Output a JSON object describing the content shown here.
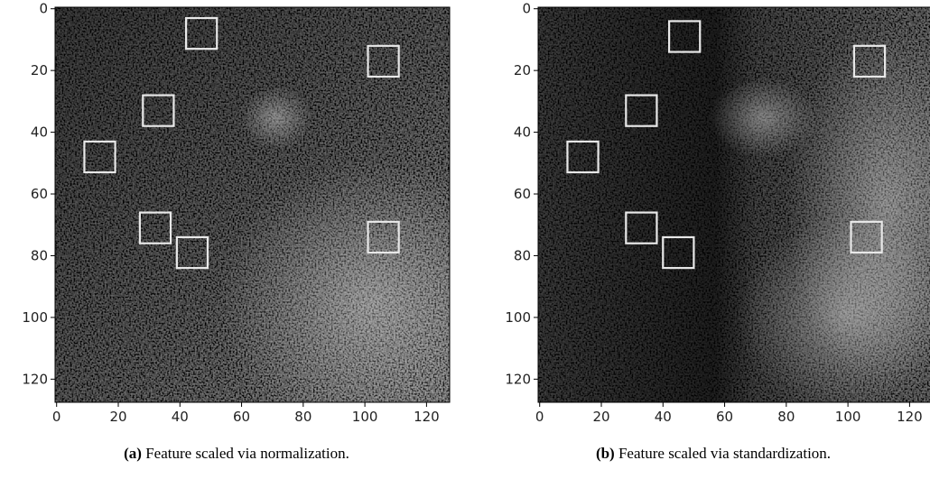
{
  "figure": {
    "panels": [
      {
        "caption_label": "(a)",
        "caption": "Feature scaled via normalization.",
        "xlim": [
          -0.5,
          127.5
        ],
        "ylim": [
          127.5,
          -0.5
        ],
        "xticks": [
          0,
          20,
          40,
          60,
          80,
          100,
          120
        ],
        "yticks": [
          0,
          20,
          40,
          60,
          80,
          100,
          120
        ],
        "boxes": [
          {
            "x": 47,
            "y": 8,
            "size": 10
          },
          {
            "x": 106,
            "y": 17,
            "size": 10
          },
          {
            "x": 33,
            "y": 33,
            "size": 10
          },
          {
            "x": 14,
            "y": 48,
            "size": 10
          },
          {
            "x": 32,
            "y": 71,
            "size": 10
          },
          {
            "x": 44,
            "y": 79,
            "size": 10
          },
          {
            "x": 106,
            "y": 74,
            "size": 10
          }
        ]
      },
      {
        "caption_label": "(b)",
        "caption": "Feature scaled via standardization.",
        "xlim": [
          -0.5,
          127.5
        ],
        "ylim": [
          127.5,
          -0.5
        ],
        "xticks": [
          0,
          20,
          40,
          60,
          80,
          100,
          120
        ],
        "yticks": [
          0,
          20,
          40,
          60,
          80,
          100,
          120
        ],
        "boxes": [
          {
            "x": 47,
            "y": 9,
            "size": 10
          },
          {
            "x": 107,
            "y": 17,
            "size": 10
          },
          {
            "x": 33,
            "y": 33,
            "size": 10
          },
          {
            "x": 14,
            "y": 48,
            "size": 10
          },
          {
            "x": 33,
            "y": 71,
            "size": 10
          },
          {
            "x": 45,
            "y": 79,
            "size": 10
          },
          {
            "x": 106,
            "y": 74,
            "size": 10
          }
        ]
      }
    ]
  }
}
